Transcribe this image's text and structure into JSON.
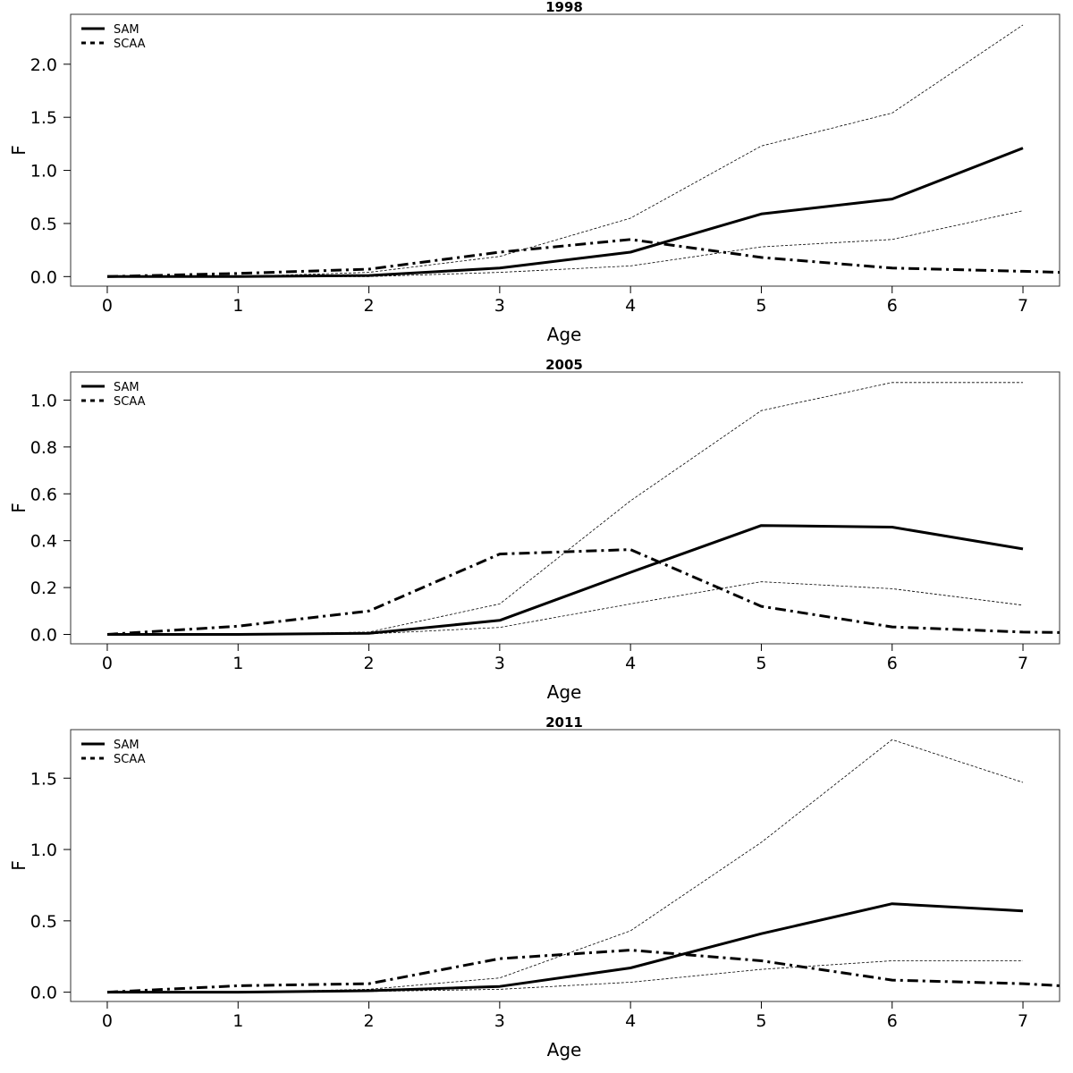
{
  "chart_data": [
    {
      "type": "line",
      "title": "1998",
      "xlabel": "Age",
      "ylabel": "F",
      "x": [
        0,
        1,
        2,
        3,
        4,
        5,
        6,
        7
      ],
      "xlim": [
        -0.28,
        7.28
      ],
      "ylim": [
        -0.09,
        2.47
      ],
      "yticks": [
        0.0,
        0.5,
        1.0,
        1.5,
        2.0
      ],
      "ytick_labels": [
        "0.0",
        "0.5",
        "1.0",
        "1.5",
        "2.0"
      ],
      "legend": {
        "position": "top-left",
        "entries": [
          "SAM",
          "SCAA"
        ]
      },
      "series": [
        {
          "name": "SAM",
          "style": "solid-thick",
          "values": [
            0.0,
            0.0,
            0.01,
            0.08,
            0.23,
            0.59,
            0.73,
            1.21
          ]
        },
        {
          "name": "SCAA",
          "style": "dash-dot-thick",
          "x": [
            0,
            1,
            2,
            3,
            4,
            5,
            6,
            7,
            7.28
          ],
          "values": [
            0.0,
            0.03,
            0.07,
            0.23,
            0.35,
            0.18,
            0.08,
            0.05,
            0.04
          ]
        },
        {
          "style": "dotted-thin",
          "values": [
            0.0,
            0.0,
            0.04,
            0.19,
            0.55,
            1.23,
            1.54,
            2.37
          ]
        },
        {
          "style": "dotted-thin",
          "values": [
            0.0,
            0.0,
            0.0,
            0.04,
            0.1,
            0.28,
            0.35,
            0.62
          ]
        }
      ]
    },
    {
      "type": "line",
      "title": "2005",
      "xlabel": "Age",
      "ylabel": "F",
      "x": [
        0,
        1,
        2,
        3,
        4,
        5,
        6,
        7
      ],
      "xlim": [
        -0.28,
        7.28
      ],
      "ylim": [
        -0.04,
        1.12
      ],
      "yticks": [
        0.0,
        0.2,
        0.4,
        0.6,
        0.8,
        1.0
      ],
      "ytick_labels": [
        "0.0",
        "0.2",
        "0.4",
        "0.6",
        "0.8",
        "1.0"
      ],
      "legend": {
        "position": "top-left",
        "entries": [
          "SAM",
          "SCAA"
        ]
      },
      "series": [
        {
          "name": "SAM",
          "style": "solid-thick",
          "values": [
            0.0,
            0.0,
            0.005,
            0.06,
            0.265,
            0.465,
            0.458,
            0.365
          ]
        },
        {
          "name": "SCAA",
          "style": "dash-dot-thick",
          "x": [
            0,
            1,
            2,
            3,
            4,
            5,
            6,
            7,
            7.28
          ],
          "values": [
            0.0,
            0.035,
            0.1,
            0.343,
            0.362,
            0.12,
            0.032,
            0.01,
            0.008
          ]
        },
        {
          "style": "dotted-thin",
          "values": [
            0.0,
            0.0,
            0.01,
            0.13,
            0.57,
            0.955,
            1.075,
            1.075
          ]
        },
        {
          "style": "dotted-thin",
          "values": [
            0.0,
            0.0,
            0.002,
            0.03,
            0.13,
            0.225,
            0.195,
            0.125
          ]
        }
      ]
    },
    {
      "type": "line",
      "title": "2011",
      "xlabel": "Age",
      "ylabel": "F",
      "x": [
        0,
        1,
        2,
        3,
        4,
        5,
        6,
        7
      ],
      "xlim": [
        -0.28,
        7.28
      ],
      "ylim": [
        -0.065,
        1.84
      ],
      "yticks": [
        0.0,
        0.5,
        1.0,
        1.5
      ],
      "ytick_labels": [
        "0.0",
        "0.5",
        "1.0",
        "1.5"
      ],
      "legend": {
        "position": "top-left",
        "entries": [
          "SAM",
          "SCAA"
        ]
      },
      "series": [
        {
          "name": "SAM",
          "style": "solid-thick",
          "values": [
            0.0,
            0.0,
            0.01,
            0.04,
            0.17,
            0.41,
            0.62,
            0.57
          ]
        },
        {
          "name": "SCAA",
          "style": "dash-dot-thick",
          "x": [
            0,
            1,
            2,
            3,
            4,
            5,
            6,
            7,
            7.28
          ],
          "values": [
            0.0,
            0.045,
            0.06,
            0.235,
            0.295,
            0.22,
            0.085,
            0.06,
            0.045
          ]
        },
        {
          "style": "dotted-thin",
          "values": [
            0.0,
            0.0,
            0.02,
            0.1,
            0.43,
            1.05,
            1.77,
            1.47
          ]
        },
        {
          "style": "dotted-thin",
          "values": [
            0.0,
            0.0,
            0.005,
            0.02,
            0.07,
            0.16,
            0.22,
            0.22
          ]
        }
      ]
    }
  ]
}
